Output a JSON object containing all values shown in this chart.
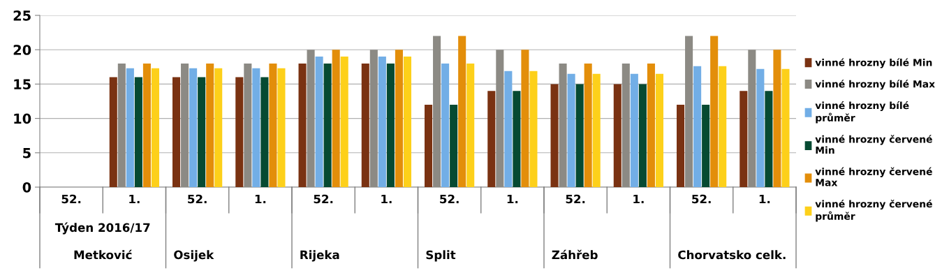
{
  "chart_data": {
    "type": "bar",
    "categories": [
      "52.",
      "1.",
      "52.",
      "1.",
      "52.",
      "1.",
      "52.",
      "1.",
      "52.",
      "1.",
      "52.",
      "1."
    ],
    "series": [
      {
        "name": "vinné hrozny bílé Min",
        "color": "#7a3212",
        "values": [
          null,
          16,
          16,
          16,
          18,
          18,
          12,
          14,
          15,
          15,
          12,
          14
        ]
      },
      {
        "name": "vinné hrozny bílé Max",
        "color": "#8c8a84",
        "values": [
          null,
          18,
          18,
          18,
          20,
          20,
          22,
          20,
          18,
          18,
          22,
          20
        ]
      },
      {
        "name": "vinné hrozny bílé průměr",
        "color": "#72aee6",
        "values": [
          null,
          17.3,
          17.3,
          17.3,
          19,
          19,
          18,
          16.9,
          16.5,
          16.5,
          17.6,
          17.2
        ]
      },
      {
        "name": "vinné hrozny červené Min",
        "color": "#064a32",
        "values": [
          null,
          16,
          16,
          16,
          18,
          18,
          12,
          14,
          15,
          15,
          12,
          14
        ]
      },
      {
        "name": "vinné hrozny červené Max",
        "color": "#e38e0a",
        "values": [
          null,
          18,
          18,
          18,
          20,
          20,
          22,
          20,
          18,
          18,
          22,
          20
        ]
      },
      {
        "name": "vinné hrozny červené průměr",
        "color": "#fdd01a",
        "values": [
          null,
          17.3,
          17.3,
          17.3,
          19,
          19,
          18,
          16.9,
          16.5,
          16.5,
          17.6,
          17.2
        ]
      }
    ],
    "annotations": [
      "Týden 2016/17",
      "Metković",
      "Osijek",
      "Rijeka",
      "Split",
      "Záhřeb",
      "Chorvatsko celk."
    ],
    "ylim": [
      0,
      25
    ],
    "yticks": [
      0,
      5,
      10,
      15,
      20,
      25
    ],
    "grid": "y",
    "legend": "right"
  }
}
